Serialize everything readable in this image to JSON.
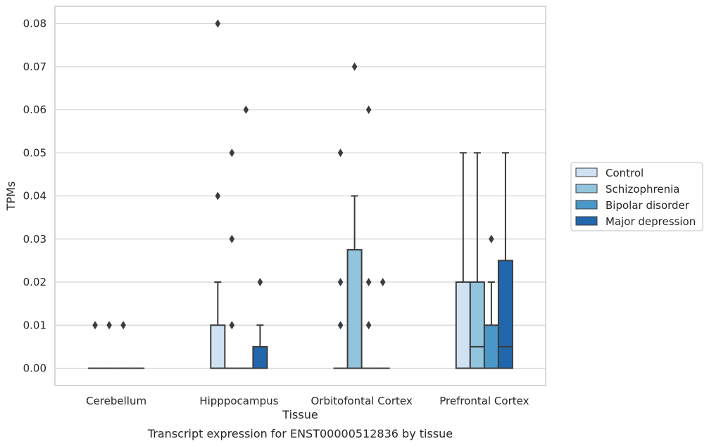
{
  "chart_data": {
    "type": "box",
    "title": "",
    "caption": "Transcript expression for ENST00000512836 by tissue",
    "xlabel": "Tissue",
    "ylabel": "TPMs",
    "ylim": [
      -0.004,
      0.084
    ],
    "yticks": [
      "0.00",
      "0.01",
      "0.02",
      "0.03",
      "0.04",
      "0.05",
      "0.06",
      "0.07",
      "0.08"
    ],
    "grid": true,
    "legend_position": "right",
    "categories": [
      "Cerebellum",
      "Hipppocampus",
      "Orbitofontal Cortex",
      "Prefrontal Cortex"
    ],
    "series": [
      {
        "name": "Control",
        "color": "#cfe1f2",
        "boxes": [
          {
            "q1": 0,
            "median": 0,
            "q3": 0,
            "whisker_low": 0,
            "whisker_high": 0,
            "outliers": [
              0.01
            ]
          },
          {
            "q1": 0,
            "median": 0,
            "q3": 0.01,
            "whisker_low": 0,
            "whisker_high": 0.02,
            "outliers": [
              0.04,
              0.08
            ]
          },
          {
            "q1": 0,
            "median": 0,
            "q3": 0,
            "whisker_low": 0,
            "whisker_high": 0,
            "outliers": [
              0.01,
              0.02,
              0.05
            ]
          },
          {
            "q1": 0,
            "median": 0,
            "q3": 0.02,
            "whisker_low": 0,
            "whisker_high": 0.05,
            "outliers": []
          }
        ]
      },
      {
        "name": "Schizophrenia",
        "color": "#93c4de",
        "boxes": [
          {
            "q1": 0,
            "median": 0,
            "q3": 0,
            "whisker_low": 0,
            "whisker_high": 0,
            "outliers": [
              0.01
            ]
          },
          {
            "q1": 0,
            "median": 0,
            "q3": 0,
            "whisker_low": 0,
            "whisker_high": 0,
            "outliers": [
              0.01,
              0.03,
              0.05
            ]
          },
          {
            "q1": 0,
            "median": 0,
            "q3": 0.0275,
            "whisker_low": 0,
            "whisker_high": 0.04,
            "outliers": [
              0.07
            ]
          },
          {
            "q1": 0,
            "median": 0.005,
            "q3": 0.02,
            "whisker_low": 0,
            "whisker_high": 0.05,
            "outliers": []
          }
        ]
      },
      {
        "name": "Bipolar disorder",
        "color": "#4a98c9",
        "boxes": [
          {
            "q1": 0,
            "median": 0,
            "q3": 0,
            "whisker_low": 0,
            "whisker_high": 0,
            "outliers": [
              0.01
            ]
          },
          {
            "q1": 0,
            "median": 0,
            "q3": 0,
            "whisker_low": 0,
            "whisker_high": 0,
            "outliers": [
              0.06
            ]
          },
          {
            "q1": 0,
            "median": 0,
            "q3": 0,
            "whisker_low": 0,
            "whisker_high": 0,
            "outliers": [
              0.01,
              0.02,
              0.06
            ]
          },
          {
            "q1": 0,
            "median": 0,
            "q3": 0.01,
            "whisker_low": 0,
            "whisker_high": 0.02,
            "outliers": [
              0.03
            ]
          }
        ]
      },
      {
        "name": "Major depression",
        "color": "#2167ac",
        "boxes": [
          {
            "q1": 0,
            "median": 0,
            "q3": 0,
            "whisker_low": 0,
            "whisker_high": 0,
            "outliers": []
          },
          {
            "q1": 0,
            "median": 0,
            "q3": 0.005,
            "whisker_low": 0,
            "whisker_high": 0.01,
            "outliers": [
              0.02
            ]
          },
          {
            "q1": 0,
            "median": 0,
            "q3": 0,
            "whisker_low": 0,
            "whisker_high": 0,
            "outliers": [
              0.02
            ]
          },
          {
            "q1": 0,
            "median": 0.005,
            "q3": 0.025,
            "whisker_low": 0,
            "whisker_high": 0.05,
            "outliers": []
          }
        ]
      }
    ]
  }
}
